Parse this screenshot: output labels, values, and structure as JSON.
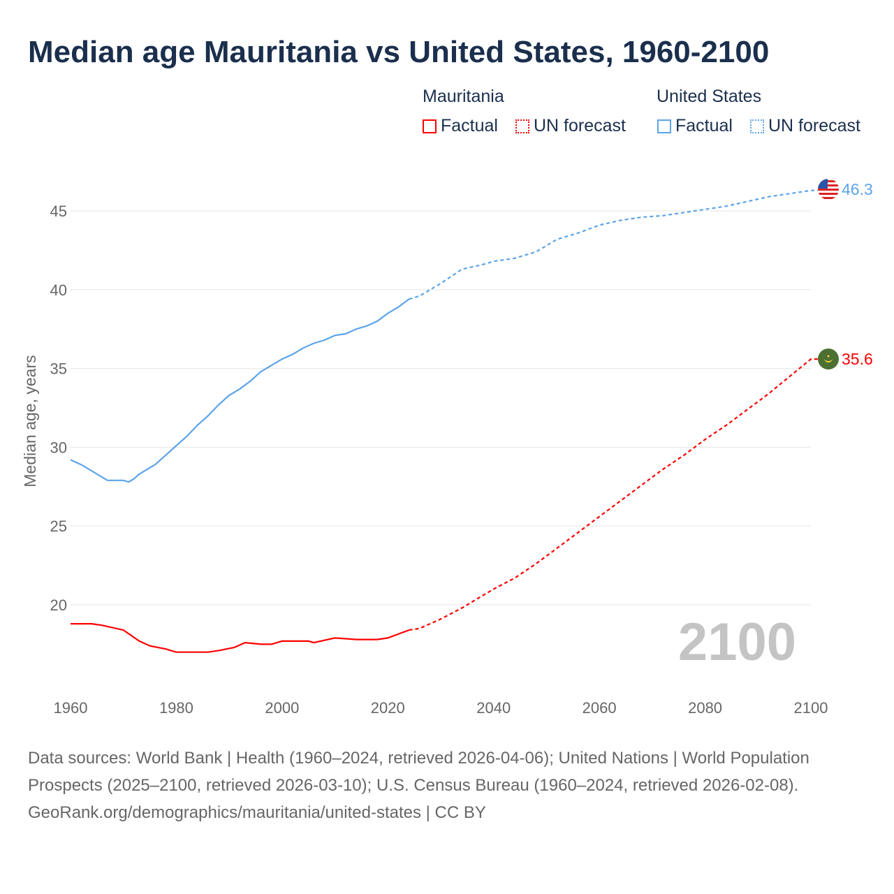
{
  "title": "Median age Mauritania vs United States, 1960-2100",
  "legend": {
    "mauritania": {
      "title": "Mauritania",
      "factual": "Factual",
      "forecast": "UN forecast"
    },
    "us": {
      "title": "United States",
      "factual": "Factual",
      "forecast": "UN forecast"
    }
  },
  "colors": {
    "mauritania": "#ff0000",
    "us": "#5ca4e8"
  },
  "year_watermark": "2100",
  "sources": "Data sources: World Bank | Health (1960–2024, retrieved 2026-04-06); United Nations | World Population Prospects (2025–2100, retrieved 2026-03-10); U.S. Census Bureau (1960–2024, retrieved 2026-02-08).",
  "credit": "GeoRank.org/demographics/mauritania/united-states | CC BY",
  "chart_data": {
    "type": "line",
    "ylabel": "Median age, years",
    "xlabel": "",
    "xlim": [
      1960,
      2100
    ],
    "ylim": [
      15,
      47
    ],
    "xticks": [
      1960,
      1980,
      2000,
      2020,
      2040,
      2060,
      2080,
      2100
    ],
    "yticks": [
      20,
      25,
      30,
      35,
      40,
      45
    ],
    "forecast_start": 2024,
    "series": [
      {
        "name": "United States",
        "key": "us",
        "end_label": "46.3",
        "x": [
          1960,
          1962,
          1964,
          1966,
          1967,
          1970,
          1971,
          1972,
          1973,
          1976,
          1978,
          1980,
          1982,
          1984,
          1986,
          1988,
          1990,
          1992,
          1994,
          1996,
          1998,
          2000,
          2002,
          2004,
          2006,
          2008,
          2010,
          2012,
          2014,
          2016,
          2018,
          2020,
          2022,
          2024,
          2026,
          2030,
          2034,
          2038,
          2040,
          2044,
          2048,
          2052,
          2056,
          2060,
          2064,
          2068,
          2072,
          2076,
          2080,
          2084,
          2088,
          2092,
          2096,
          2100
        ],
        "y": [
          29.2,
          28.9,
          28.5,
          28.1,
          27.9,
          27.9,
          27.8,
          28.0,
          28.3,
          28.9,
          29.5,
          30.1,
          30.7,
          31.4,
          32.0,
          32.7,
          33.3,
          33.7,
          34.2,
          34.8,
          35.2,
          35.6,
          35.9,
          36.3,
          36.6,
          36.8,
          37.1,
          37.2,
          37.5,
          37.7,
          38.0,
          38.5,
          38.9,
          39.4,
          39.6,
          40.4,
          41.3,
          41.6,
          41.8,
          42.0,
          42.4,
          43.2,
          43.6,
          44.1,
          44.4,
          44.6,
          44.7,
          44.9,
          45.1,
          45.3,
          45.6,
          45.9,
          46.1,
          46.3
        ]
      },
      {
        "name": "Mauritania",
        "key": "mauritania",
        "end_label": "35.6",
        "x": [
          1960,
          1964,
          1966,
          1970,
          1973,
          1975,
          1978,
          1980,
          1986,
          1988,
          1991,
          1993,
          1996,
          1998,
          2000,
          2005,
          2006,
          2010,
          2014,
          2018,
          2020,
          2024,
          2026,
          2030,
          2034,
          2040,
          2044,
          2048,
          2052,
          2056,
          2060,
          2064,
          2068,
          2072,
          2076,
          2080,
          2084,
          2088,
          2092,
          2096,
          2100
        ],
        "y": [
          18.8,
          18.8,
          18.7,
          18.4,
          17.7,
          17.4,
          17.2,
          17.0,
          17.0,
          17.1,
          17.3,
          17.6,
          17.5,
          17.5,
          17.7,
          17.7,
          17.6,
          17.9,
          17.8,
          17.8,
          17.9,
          18.4,
          18.5,
          19.1,
          19.8,
          21.0,
          21.7,
          22.6,
          23.6,
          24.6,
          25.6,
          26.6,
          27.6,
          28.6,
          29.5,
          30.5,
          31.4,
          32.4,
          33.4,
          34.5,
          35.6
        ]
      }
    ]
  }
}
